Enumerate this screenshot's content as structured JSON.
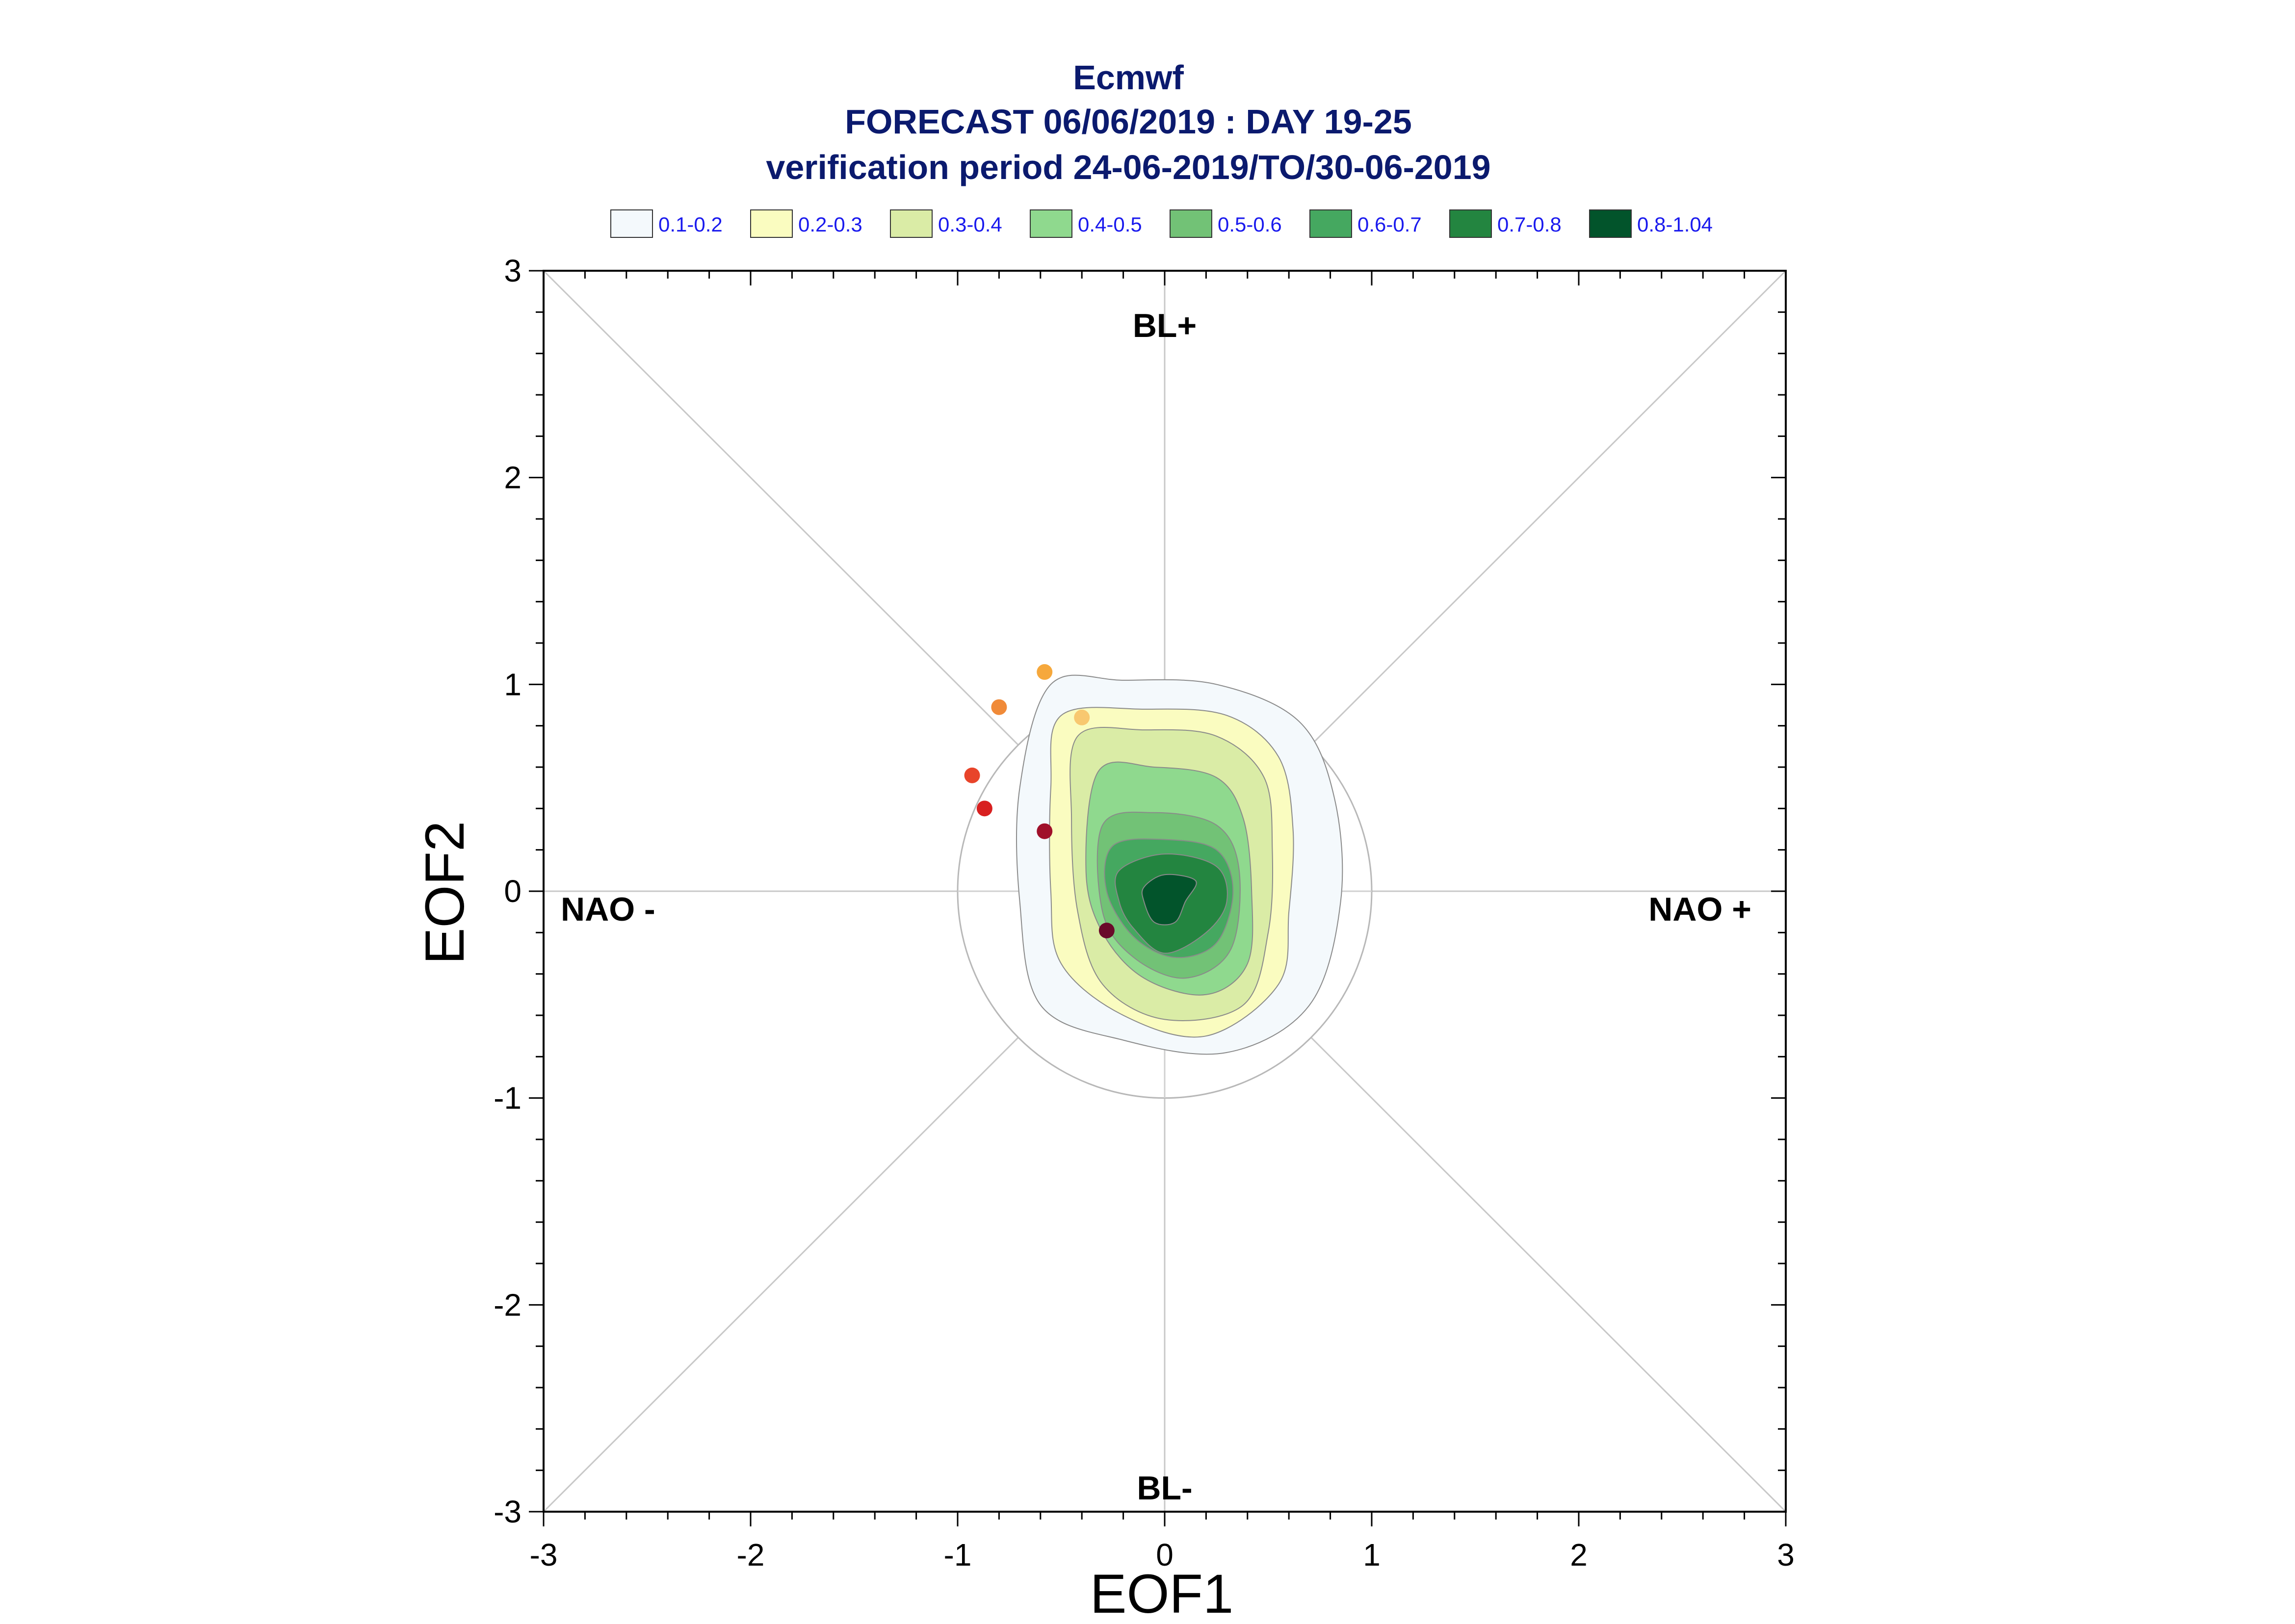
{
  "chart_data": {
    "type": "scatter",
    "title_lines": [
      "Ecmwf",
      "FORECAST 06/06/2019 : DAY 19-25",
      "verification period 24-06-2019/TO/30-06-2019"
    ],
    "xlabel": "EOF1",
    "ylabel": "EOF2",
    "xlim": [
      -3,
      3
    ],
    "ylim": [
      -3,
      3
    ],
    "xticks": [
      "-3",
      "-2",
      "-1",
      "0",
      "1",
      "2",
      "3"
    ],
    "yticks": [
      "-3",
      "-2",
      "-1",
      "0",
      "1",
      "2",
      "3"
    ],
    "regime_labels": {
      "top": "BL+",
      "bottom": "BL-",
      "left": "NAO -",
      "right": "NAO +"
    },
    "legend": [
      {
        "label": "0.1-0.2",
        "color": "#f4f9fc"
      },
      {
        "label": "0.2-0.3",
        "color": "#fafcc0"
      },
      {
        "label": "0.3-0.4",
        "color": "#daeca6"
      },
      {
        "label": "0.4-0.5",
        "color": "#8fd98e"
      },
      {
        "label": "0.5-0.6",
        "color": "#72c276"
      },
      {
        "label": "0.6-0.7",
        "color": "#45a860"
      },
      {
        "label": "0.7-0.8",
        "color": "#238540"
      },
      {
        "label": "0.8-1.04",
        "color": "#02542b"
      }
    ],
    "reference_circle_radius": 1,
    "density_contours": [
      {
        "level": "0.1-0.2",
        "color": "#f4f9fc",
        "points": [
          [
            -0.55,
            1.0
          ],
          [
            -0.2,
            1.02
          ],
          [
            0.25,
            1.0
          ],
          [
            0.65,
            0.82
          ],
          [
            0.82,
            0.45
          ],
          [
            0.85,
            -0.05
          ],
          [
            0.7,
            -0.55
          ],
          [
            0.3,
            -0.78
          ],
          [
            -0.2,
            -0.72
          ],
          [
            -0.6,
            -0.55
          ],
          [
            -0.7,
            -0.05
          ],
          [
            -0.7,
            0.5
          ]
        ]
      },
      {
        "level": "0.2-0.3",
        "color": "#fafcc0",
        "points": [
          [
            -0.5,
            0.85
          ],
          [
            -0.1,
            0.88
          ],
          [
            0.3,
            0.85
          ],
          [
            0.55,
            0.65
          ],
          [
            0.62,
            0.3
          ],
          [
            0.6,
            -0.1
          ],
          [
            0.55,
            -0.45
          ],
          [
            0.2,
            -0.7
          ],
          [
            -0.2,
            -0.6
          ],
          [
            -0.5,
            -0.35
          ],
          [
            -0.55,
            0.0
          ],
          [
            -0.55,
            0.5
          ]
        ]
      },
      {
        "level": "0.3-0.4",
        "color": "#daeca6",
        "points": [
          [
            -0.42,
            0.75
          ],
          [
            -0.1,
            0.78
          ],
          [
            0.25,
            0.75
          ],
          [
            0.48,
            0.55
          ],
          [
            0.52,
            0.2
          ],
          [
            0.5,
            -0.2
          ],
          [
            0.38,
            -0.55
          ],
          [
            0.0,
            -0.62
          ],
          [
            -0.3,
            -0.45
          ],
          [
            -0.42,
            -0.1
          ],
          [
            -0.45,
            0.35
          ]
        ]
      },
      {
        "level": "0.4-0.5",
        "color": "#8fd98e",
        "points": [
          [
            -0.32,
            0.58
          ],
          [
            -0.05,
            0.6
          ],
          [
            0.25,
            0.55
          ],
          [
            0.38,
            0.35
          ],
          [
            0.42,
            0.0
          ],
          [
            0.4,
            -0.35
          ],
          [
            0.2,
            -0.5
          ],
          [
            -0.1,
            -0.42
          ],
          [
            -0.3,
            -0.2
          ],
          [
            -0.38,
            0.1
          ]
        ]
      },
      {
        "level": "0.5-0.6",
        "color": "#72c276",
        "points": [
          [
            -0.3,
            0.32
          ],
          [
            -0.05,
            0.38
          ],
          [
            0.25,
            0.32
          ],
          [
            0.36,
            0.1
          ],
          [
            0.32,
            -0.28
          ],
          [
            0.1,
            -0.42
          ],
          [
            -0.15,
            -0.32
          ],
          [
            -0.3,
            -0.1
          ]
        ]
      },
      {
        "level": "0.6-0.7",
        "color": "#45a860",
        "points": [
          [
            -0.25,
            0.22
          ],
          [
            0.0,
            0.25
          ],
          [
            0.25,
            0.2
          ],
          [
            0.33,
            0.0
          ],
          [
            0.25,
            -0.25
          ],
          [
            0.05,
            -0.32
          ],
          [
            -0.15,
            -0.22
          ],
          [
            -0.28,
            0.0
          ]
        ]
      },
      {
        "level": "0.7-0.8",
        "color": "#238540",
        "points": [
          [
            -0.22,
            0.1
          ],
          [
            0.0,
            0.18
          ],
          [
            0.25,
            0.12
          ],
          [
            0.3,
            -0.05
          ],
          [
            0.2,
            -0.2
          ],
          [
            0.0,
            -0.3
          ],
          [
            -0.15,
            -0.18
          ],
          [
            -0.22,
            -0.05
          ]
        ]
      },
      {
        "level": "0.8-1.04",
        "color": "#02542b",
        "points": [
          [
            -0.1,
            0.02
          ],
          [
            0.0,
            0.08
          ],
          [
            0.15,
            0.05
          ],
          [
            0.1,
            -0.05
          ],
          [
            0.05,
            -0.15
          ],
          [
            -0.05,
            -0.15
          ],
          [
            -0.1,
            -0.05
          ]
        ]
      }
    ],
    "points": [
      {
        "x": -0.58,
        "y": 1.06,
        "color": "#f6a83c"
      },
      {
        "x": -0.4,
        "y": 0.84,
        "color": "#f8c870"
      },
      {
        "x": -0.8,
        "y": 0.89,
        "color": "#f08a38"
      },
      {
        "x": -0.93,
        "y": 0.56,
        "color": "#e8442a"
      },
      {
        "x": -0.87,
        "y": 0.4,
        "color": "#d82020"
      },
      {
        "x": -0.58,
        "y": 0.29,
        "color": "#a0102a"
      },
      {
        "x": -0.28,
        "y": -0.19,
        "color": "#6a0a2a"
      }
    ],
    "grid": false
  }
}
